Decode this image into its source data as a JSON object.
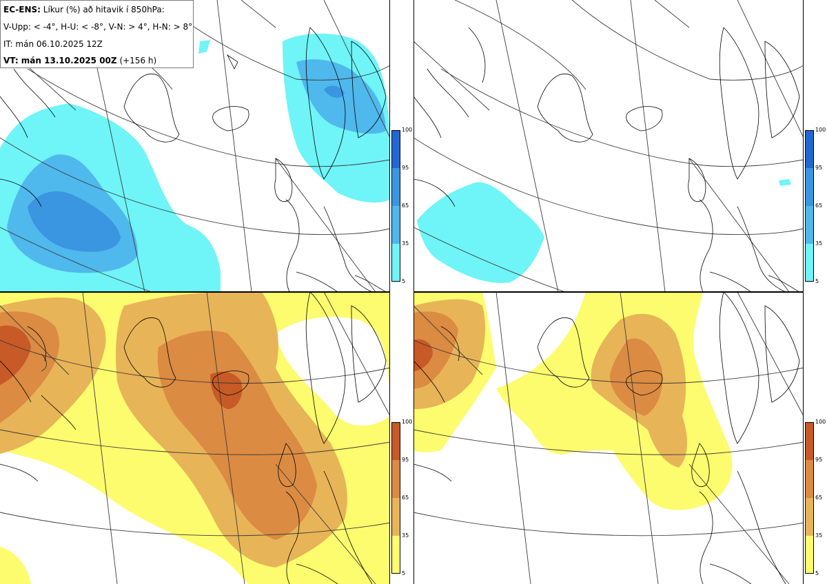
{
  "info": {
    "model": "EC-ENS:",
    "title": "Líkur (%) að hitavik í 850hPa:",
    "thresholds": "V-Upp: < -4°, H-U: < -8°, V-N: > 4°, H-N: > 8°",
    "init_time": "IT: mán 06.10.2025 12Z",
    "valid_label": "VT: mán 13.10.2025 00Z",
    "lead": "(+156 h)"
  },
  "colorbar": {
    "tick_labels": [
      "100",
      "95",
      "65",
      "35",
      "5"
    ],
    "cold_colors": [
      "#6ff4f7",
      "#3fe6f3",
      "#4fb8ec",
      "#3a96e0",
      "#2168d3"
    ],
    "warm_colors": [
      "#fdfc6e",
      "#f4e463",
      "#e8b458",
      "#db8b42",
      "#c75a26"
    ]
  },
  "panels": [
    {
      "id": "V-Upp",
      "meaning": "anomaly < -4°"
    },
    {
      "id": "H-U",
      "meaning": "anomaly < -8°"
    },
    {
      "id": "V-N",
      "meaning": "anomaly > 4°"
    },
    {
      "id": "H-N",
      "meaning": "anomaly > 8°"
    }
  ]
}
